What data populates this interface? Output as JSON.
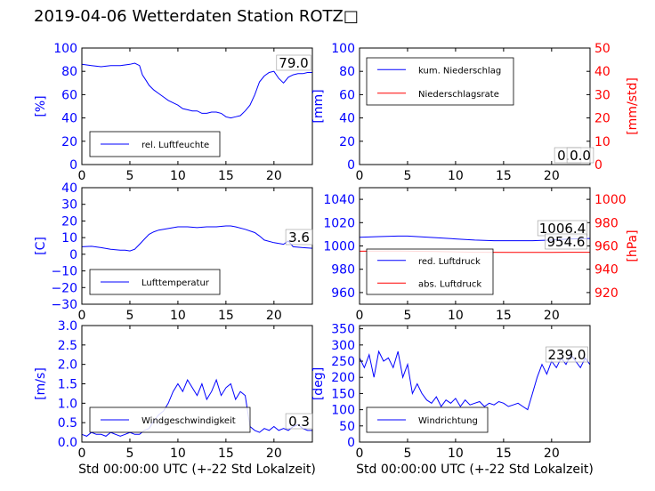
{
  "title": "2019-04-06 Wetterdaten Station ROTZ□",
  "colors": {
    "primary": "#0000ff",
    "secondary": "#ff0000",
    "axis": "#000000",
    "background": "#ffffff"
  },
  "chart_data": [
    {
      "type": "line",
      "panel": "top-left",
      "xlim": [
        0,
        24
      ],
      "xticks": [
        "0",
        "5",
        "10",
        "15",
        "20"
      ],
      "ylabel": "[%]",
      "ylim": [
        0,
        100
      ],
      "yticks": [
        "0",
        "20",
        "40",
        "60",
        "80",
        "100"
      ],
      "legend": [
        "rel. Luftfeuchte"
      ],
      "legend_position": "lower-left",
      "annotations": [
        "79.0"
      ],
      "series": [
        {
          "name": "rel. Luftfeuchte",
          "color": "#0000ff",
          "x": [
            0,
            1,
            2,
            3,
            4,
            5,
            5.5,
            6,
            6.3,
            6.7,
            7,
            7.5,
            8,
            8.5,
            9,
            9.5,
            10,
            10.5,
            11,
            11.5,
            12,
            12.5,
            13,
            13.5,
            14,
            14.5,
            15,
            15.5,
            16,
            16.5,
            17,
            17.5,
            18,
            18.5,
            19,
            19.5,
            20,
            20.5,
            21,
            21.5,
            22,
            22.5,
            23,
            23.5,
            24
          ],
          "y": [
            86,
            85,
            84,
            85,
            85,
            86,
            87,
            85,
            77,
            72,
            68,
            64,
            61,
            58,
            55,
            53,
            51,
            48,
            47,
            46,
            46,
            44,
            44,
            45,
            45,
            44,
            41,
            40,
            41,
            42,
            46,
            51,
            60,
            71,
            76,
            79,
            80,
            74,
            70,
            75,
            77,
            78,
            78,
            79,
            79
          ]
        }
      ]
    },
    {
      "type": "line",
      "panel": "top-right",
      "xlim": [
        0,
        24
      ],
      "xticks": [
        "0",
        "5",
        "10",
        "15",
        "20"
      ],
      "ylabel": "[mm]",
      "ylim": [
        0,
        100
      ],
      "yticks": [
        "0",
        "20",
        "40",
        "60",
        "80",
        "100"
      ],
      "y2label": "[mm/std]",
      "y2lim": [
        0,
        50
      ],
      "y2ticks": [
        "0",
        "10",
        "20",
        "30",
        "40",
        "50"
      ],
      "legend": [
        "kum. Niederschlag",
        "Niederschlagsrate"
      ],
      "legend_position": "upper-left",
      "annotations": [
        "0.0",
        "0.0"
      ],
      "series": [
        {
          "name": "kum. Niederschlag",
          "color": "#0000ff",
          "x": [
            0,
            24
          ],
          "y": [
            0,
            0
          ]
        },
        {
          "name": "Niederschlagsrate",
          "color": "#ff0000",
          "axis": "y2",
          "x": [
            0,
            24
          ],
          "y": [
            0,
            0
          ]
        }
      ]
    },
    {
      "type": "line",
      "panel": "middle-left",
      "xlim": [
        0,
        24
      ],
      "xticks": [
        "0",
        "5",
        "10",
        "15",
        "20"
      ],
      "ylabel": "[C]",
      "ylim": [
        -30,
        40
      ],
      "yticks": [
        "−30",
        "−20",
        "−10",
        "0",
        "10",
        "20",
        "30",
        "40"
      ],
      "legend": [
        "Lufttemperatur"
      ],
      "legend_position": "lower-left",
      "annotations": [
        "3.6"
      ],
      "series": [
        {
          "name": "Lufttemperatur",
          "color": "#0000ff",
          "x": [
            0,
            1,
            2,
            3,
            4,
            4.5,
            5,
            5.5,
            6,
            6.5,
            7,
            7.5,
            8,
            9,
            10,
            11,
            12,
            13,
            14,
            15,
            15.5,
            16,
            17,
            18,
            18.5,
            19,
            20,
            21,
            21.5,
            22,
            23,
            24
          ],
          "y": [
            4.5,
            4.8,
            4,
            3,
            2.5,
            2.5,
            2,
            3,
            6,
            9,
            12,
            13.5,
            14.5,
            15.5,
            16.5,
            16.5,
            16,
            16.5,
            16.5,
            17,
            17,
            16.5,
            15,
            13,
            11,
            8.5,
            7,
            6,
            8,
            4.5,
            4,
            3.6
          ]
        }
      ]
    },
    {
      "type": "line",
      "panel": "middle-right",
      "xlim": [
        0,
        24
      ],
      "xticks": [
        "0",
        "5",
        "10",
        "15",
        "20"
      ],
      "ylabel": "",
      "ylim": [
        950,
        1050
      ],
      "yticks": [
        "960",
        "980",
        "1000",
        "1020",
        "1040"
      ],
      "y2label": "[hPa]",
      "y2lim": [
        910,
        1010
      ],
      "y2ticks": [
        "920",
        "940",
        "960",
        "980",
        "1000"
      ],
      "legend": [
        "red. Luftdruck",
        "abs. Luftdruck"
      ],
      "legend_position": "lower-left",
      "annotations": [
        "1006.4",
        "954.6"
      ],
      "series": [
        {
          "name": "red. Luftdruck",
          "color": "#0000ff",
          "x": [
            0,
            2,
            4,
            5,
            6,
            8,
            10,
            12,
            14,
            16,
            18,
            20,
            22,
            24
          ],
          "y": [
            1007.5,
            1008,
            1008.5,
            1008.5,
            1008,
            1007,
            1006,
            1005,
            1004.5,
            1004.5,
            1004.5,
            1005,
            1006,
            1006.4
          ]
        },
        {
          "name": "abs. Luftdruck",
          "color": "#ff0000",
          "axis": "y2",
          "x": [
            0,
            4,
            8,
            12,
            16,
            20,
            24
          ],
          "y": [
            955.5,
            955.6,
            955.2,
            954.6,
            954.4,
            954.5,
            954.6
          ]
        }
      ]
    },
    {
      "type": "line",
      "panel": "bottom-left",
      "xlabel": "Std 00:00:00 UTC (+-22 Std Lokalzeit)",
      "xlim": [
        0,
        24
      ],
      "xticks": [
        "0",
        "5",
        "10",
        "15",
        "20"
      ],
      "ylabel": "[m/s]",
      "ylim": [
        0,
        3
      ],
      "yticks": [
        "0.0",
        "0.5",
        "1.0",
        "1.5",
        "2.0",
        "2.5",
        "3.0"
      ],
      "legend": [
        "Windgeschwindigkeit"
      ],
      "legend_position": "lower-center",
      "annotations": [
        "0.3"
      ],
      "series": [
        {
          "name": "Windgeschwindigkeit",
          "color": "#0000ff",
          "x": [
            0,
            0.5,
            1,
            1.5,
            2,
            2.5,
            3,
            3.5,
            4,
            4.5,
            5,
            5.5,
            6,
            6.5,
            7,
            7.5,
            8,
            8.5,
            9,
            9.5,
            10,
            10.5,
            11,
            11.5,
            12,
            12.5,
            13,
            13.5,
            14,
            14.5,
            15,
            15.5,
            16,
            16.5,
            17,
            17.5,
            18,
            18.5,
            19,
            19.5,
            20,
            20.5,
            21,
            21.5,
            22,
            22.5,
            23,
            23.5,
            24
          ],
          "y": [
            0.2,
            0.15,
            0.25,
            0.2,
            0.2,
            0.15,
            0.25,
            0.2,
            0.15,
            0.2,
            0.25,
            0.2,
            0.2,
            0.3,
            0.35,
            0.55,
            0.7,
            0.8,
            1.0,
            1.3,
            1.5,
            1.3,
            1.6,
            1.4,
            1.2,
            1.5,
            1.1,
            1.3,
            1.6,
            1.2,
            1.4,
            1.5,
            1.1,
            1.3,
            1.2,
            0.4,
            0.3,
            0.25,
            0.35,
            0.3,
            0.4,
            0.3,
            0.35,
            0.3,
            0.4,
            0.45,
            0.35,
            0.3,
            0.3
          ]
        }
      ]
    },
    {
      "type": "line",
      "panel": "bottom-right",
      "xlabel": "Std 00:00:00 UTC (+-22 Std Lokalzeit)",
      "xlim": [
        0,
        24
      ],
      "xticks": [
        "0",
        "5",
        "10",
        "15",
        "20"
      ],
      "ylabel": "[deg]",
      "ylim": [
        0,
        360
      ],
      "yticks": [
        "0",
        "50",
        "100",
        "150",
        "200",
        "250",
        "300",
        "350"
      ],
      "legend": [
        "Windrichtung"
      ],
      "legend_position": "lower-left",
      "annotations": [
        "239.0"
      ],
      "series": [
        {
          "name": "Windrichtung",
          "color": "#0000ff",
          "x": [
            0,
            0.5,
            1,
            1.5,
            2,
            2.5,
            3,
            3.5,
            4,
            4.5,
            5,
            5.5,
            6,
            6.5,
            7,
            7.5,
            8,
            8.5,
            9,
            9.5,
            10,
            10.5,
            11,
            11.5,
            12,
            12.5,
            13,
            13.5,
            14,
            14.5,
            15,
            15.5,
            16,
            16.5,
            17,
            17.5,
            18,
            18.5,
            19,
            19.5,
            20,
            20.5,
            21,
            21.5,
            22,
            22.5,
            23,
            23.5,
            24
          ],
          "y": [
            260,
            230,
            270,
            200,
            280,
            250,
            260,
            230,
            280,
            200,
            240,
            150,
            180,
            150,
            130,
            120,
            140,
            110,
            130,
            120,
            135,
            110,
            130,
            115,
            120,
            125,
            110,
            120,
            115,
            125,
            120,
            110,
            115,
            120,
            110,
            100,
            150,
            200,
            240,
            210,
            250,
            230,
            260,
            240,
            270,
            250,
            230,
            260,
            239
          ]
        }
      ]
    }
  ]
}
